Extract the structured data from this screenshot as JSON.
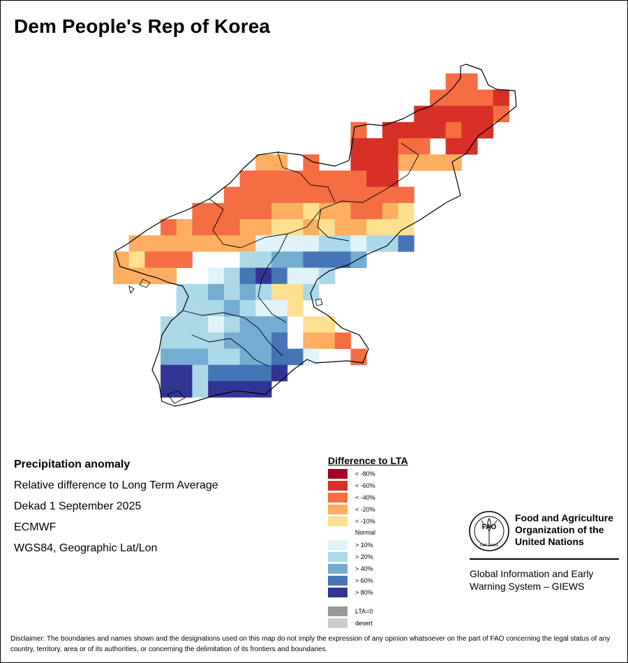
{
  "title": "Dem People's Rep of Korea",
  "info": {
    "heading": "Precipitation anomaly",
    "subtitle": "Relative difference to Long Term Average",
    "period": "Dekad 1 September 2025",
    "source": "ECMWF",
    "projection": "WGS84, Geographic Lat/Lon"
  },
  "legend": {
    "title": "Difference to LTA",
    "items": [
      {
        "label": "< -80%",
        "color": "#a50026"
      },
      {
        "label": "< -60%",
        "color": "#d73027"
      },
      {
        "label": "< -40%",
        "color": "#f46d43"
      },
      {
        "label": "< -20%",
        "color": "#fdae61"
      },
      {
        "label": "< -10%",
        "color": "#fee090"
      },
      {
        "label": "> 10%",
        "color": "#e0f3f8"
      },
      {
        "label": "> 20%",
        "color": "#abd9e9"
      },
      {
        "label": "> 40%",
        "color": "#74add1"
      },
      {
        "label": "> 60%",
        "color": "#4575b4"
      },
      {
        "label": "> 80%",
        "color": "#313695"
      }
    ],
    "normal_label": "Normal",
    "extra": [
      {
        "label": "LTA=0",
        "color": "#999999"
      },
      {
        "label": "desert",
        "color": "#cccccc"
      }
    ]
  },
  "organization": {
    "name_lines": [
      "Food and Agriculture",
      "Organization of the",
      "United Nations"
    ],
    "logo_text": "FAO",
    "logo_motto": "FIAT PANIS",
    "system_lines": [
      "Global Information and Early",
      "Warning System – GIEWS"
    ]
  },
  "disclaimer": "Disclaimer: The boundaries and names shown and the designations used on this map do not imply the expression of any opinion whatsoever on the part of FAO concerning the legal status of any country, territory, area or of its authorities, or concerning the delimitation of its frontiers and boundaries.",
  "grid_data": {
    "class_codes": {
      "-4": "< -80%",
      "-3": "< -60%",
      "-2": "< -40%",
      "-1": "< -20%",
      "-0.5": "< -10%",
      "0": "Normal",
      "1": "> 10%",
      "2": "> 20%",
      "3": "> 40%",
      "4": "> 60%",
      "5": "> 80%"
    },
    "rows": [
      [
        0,
        0,
        0,
        0,
        0,
        0,
        0,
        0,
        0,
        0,
        0,
        0,
        0,
        0,
        0,
        0,
        0,
        0,
        0,
        0,
        0,
        0,
        0,
        0,
        0,
        0,
        0
      ],
      [
        0,
        0,
        0,
        0,
        0,
        0,
        0,
        0,
        0,
        0,
        0,
        0,
        0,
        0,
        0,
        0,
        0,
        0,
        0,
        0,
        0,
        -2,
        -2,
        0,
        0,
        0,
        0
      ],
      [
        0,
        0,
        0,
        0,
        0,
        0,
        0,
        0,
        0,
        0,
        0,
        0,
        0,
        0,
        0,
        0,
        0,
        0,
        0,
        0,
        -2,
        -2,
        -2,
        -2,
        -3,
        0,
        0
      ],
      [
        0,
        0,
        0,
        0,
        0,
        0,
        0,
        0,
        0,
        0,
        0,
        0,
        0,
        0,
        0,
        0,
        0,
        0,
        0,
        -3,
        -3,
        -3,
        -3,
        -3,
        -2,
        0,
        0
      ],
      [
        0,
        0,
        0,
        0,
        0,
        0,
        0,
        0,
        0,
        0,
        0,
        0,
        0,
        0,
        0,
        -2,
        0,
        -3,
        -3,
        -3,
        -3,
        -2,
        -3,
        -3,
        0,
        0,
        0
      ],
      [
        0,
        0,
        0,
        0,
        0,
        0,
        0,
        0,
        0,
        0,
        0,
        0,
        0,
        0,
        0,
        -3,
        -3,
        -3,
        -2,
        -2,
        0,
        -3,
        -3,
        0,
        0,
        0,
        0
      ],
      [
        0,
        0,
        0,
        0,
        0,
        0,
        0,
        0,
        0,
        -1,
        -1,
        0,
        -2,
        0,
        0,
        -3,
        -3,
        -3,
        -1,
        -1,
        -1,
        -1,
        0,
        0,
        0,
        0,
        0
      ],
      [
        0,
        0,
        0,
        0,
        0,
        0,
        0,
        0,
        -2,
        -2,
        -2,
        -2,
        -2,
        -2,
        -2,
        -2,
        -3,
        -3,
        0,
        0,
        0,
        0,
        0,
        0,
        0,
        0,
        0
      ],
      [
        0,
        0,
        0,
        0,
        0,
        0,
        0,
        -2,
        -2,
        -2,
        -2,
        -2,
        -2,
        -2,
        -2,
        -2,
        -2,
        -2,
        -2,
        0,
        0,
        0,
        0,
        0,
        0,
        0,
        0
      ],
      [
        0,
        0,
        0,
        0,
        0,
        -2,
        -2,
        -2,
        -2,
        -2,
        -1,
        -1,
        -0.5,
        -1,
        -1,
        -2,
        -2,
        -1,
        -0.5,
        0,
        0,
        0,
        0,
        0,
        0,
        0,
        0
      ],
      [
        0,
        0,
        0,
        -2,
        -1,
        -2,
        -2,
        -2,
        -1,
        -1,
        -0.5,
        -0.5,
        -1,
        -0.5,
        -1,
        -1,
        -0.5,
        -0.5,
        -0.5,
        0,
        0,
        0,
        0,
        0,
        0,
        0,
        0
      ],
      [
        0,
        -1,
        -1,
        -1,
        -1,
        -1,
        -1,
        -1,
        -1,
        1,
        1,
        1,
        1,
        2,
        2,
        1,
        2,
        2,
        4,
        0,
        0,
        0,
        0,
        0,
        0,
        0,
        0
      ],
      [
        -1,
        -0.5,
        -2,
        -2,
        -2,
        0,
        0,
        0,
        2,
        2,
        3,
        3,
        4,
        4,
        4,
        3,
        0,
        0,
        0,
        0,
        0,
        0,
        0,
        0,
        0,
        0,
        0
      ],
      [
        -1,
        -1,
        -1,
        -1,
        0,
        0,
        1,
        2,
        4,
        5,
        4,
        1,
        1,
        2,
        0,
        0,
        0,
        0,
        0,
        0,
        0,
        0,
        0,
        0,
        0,
        0,
        0
      ],
      [
        0,
        0,
        0,
        0,
        2,
        2,
        3,
        2,
        3,
        2,
        -0.5,
        -0.5,
        2,
        0,
        0,
        0,
        0,
        0,
        0,
        0,
        0,
        0,
        0,
        0,
        0,
        0,
        0
      ],
      [
        0,
        0,
        0,
        0,
        2,
        2,
        2,
        3,
        2,
        1,
        1,
        -0.5,
        0,
        0,
        0,
        0,
        0,
        0,
        0,
        0,
        0,
        0,
        0,
        0,
        0,
        0,
        0
      ],
      [
        0,
        0,
        0,
        2,
        2,
        2,
        1,
        2,
        3,
        3,
        3,
        0,
        -0.5,
        -0.5,
        0,
        0,
        0,
        0,
        0,
        0,
        0,
        0,
        0,
        0,
        0,
        0,
        0
      ],
      [
        0,
        0,
        0,
        2,
        2,
        2,
        2,
        3,
        3,
        3,
        4,
        0,
        -1,
        -1,
        -2,
        0,
        0,
        0,
        0,
        0,
        0,
        0,
        0,
        0,
        0,
        0,
        0
      ],
      [
        0,
        0,
        0,
        3,
        3,
        3,
        2,
        2,
        3,
        3,
        4,
        4,
        1,
        0,
        0,
        -2,
        0,
        0,
        0,
        0,
        0,
        0,
        0,
        0,
        0,
        0,
        0
      ],
      [
        0,
        0,
        0,
        5,
        5,
        2,
        4,
        4,
        4,
        4,
        5,
        0,
        0,
        0,
        0,
        0,
        0,
        0,
        0,
        0,
        0,
        0,
        0,
        0,
        0,
        0,
        0
      ],
      [
        0,
        0,
        0,
        5,
        5,
        2,
        5,
        5,
        5,
        5,
        0,
        0,
        0,
        0,
        0,
        0,
        0,
        0,
        0,
        0,
        0,
        0,
        0,
        0,
        0,
        0,
        0
      ]
    ]
  }
}
